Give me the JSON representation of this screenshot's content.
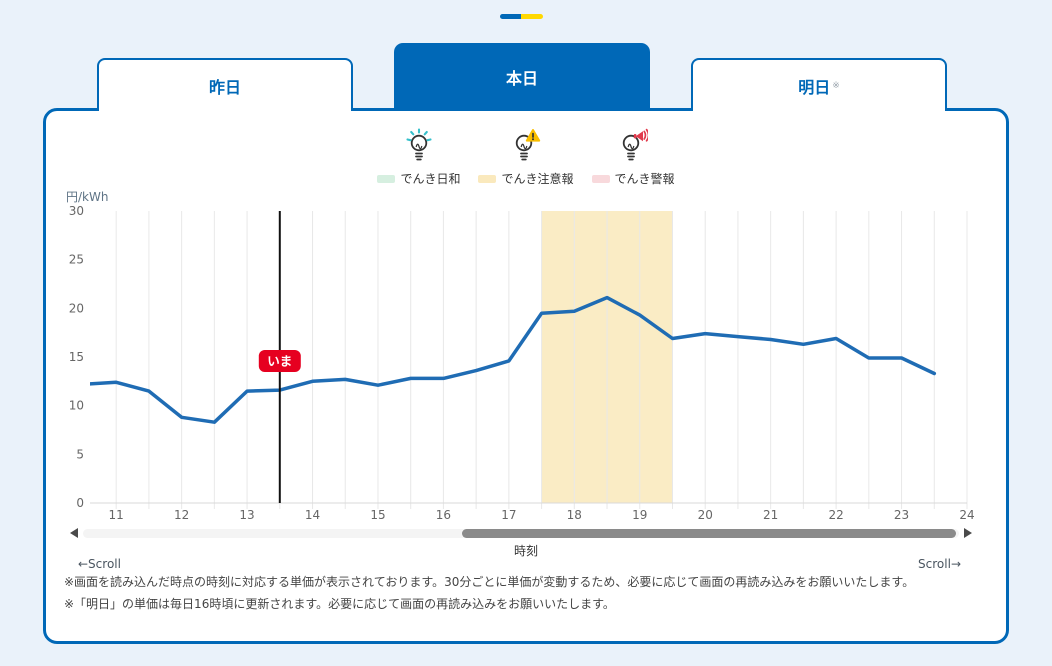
{
  "app": {
    "accent_blue": "#0068b7",
    "accent_yellow": "#ffd800"
  },
  "tabs": [
    {
      "id": "yesterday",
      "label": "昨日",
      "active": false
    },
    {
      "id": "today",
      "label": "本日",
      "active": true
    },
    {
      "id": "tomorrow",
      "label": "明日",
      "note_mark": "※",
      "active": false
    }
  ],
  "legend": [
    {
      "icon": "bulb-shine-icon",
      "label": "でんき日和",
      "swatch": "#d6efe0"
    },
    {
      "icon": "bulb-warning-icon",
      "label": "でんき注意報",
      "swatch": "#fae9bd"
    },
    {
      "icon": "bulb-alert-icon",
      "label": "でんき警報",
      "swatch": "#f8d9dc"
    }
  ],
  "chart_data": {
    "type": "line",
    "ylabel": "円/kWh",
    "xlabel": "時刻",
    "ylim": [
      0,
      30
    ],
    "xlim": [
      10.6,
      24
    ],
    "yticks": [
      0,
      5,
      10,
      15,
      20,
      25,
      30
    ],
    "xticks": [
      11,
      12,
      13,
      14,
      15,
      16,
      17,
      18,
      19,
      20,
      21,
      22,
      23,
      24
    ],
    "grid": {
      "orientation": "vertical",
      "from": 11,
      "to": 24,
      "step": 0.5
    },
    "now_marker": {
      "x": 13.5,
      "label": "いま",
      "badge_color": "#e60020",
      "line_color": "#111111"
    },
    "caution_band": {
      "from": 17.5,
      "to": 19.5,
      "color": "#faecc5",
      "meaning": "でんき注意報"
    },
    "series": [
      {
        "name": "単価",
        "color": "#1f6cb4",
        "x": [
          10.5,
          11,
          11.5,
          12,
          12.5,
          13,
          13.5,
          14,
          14.5,
          15,
          15.5,
          16,
          16.5,
          17,
          17.5,
          18,
          18.5,
          19,
          19.5,
          20,
          20.5,
          21,
          21.5,
          22,
          22.5,
          23,
          23.5
        ],
        "y": [
          12.2,
          12.4,
          11.5,
          8.8,
          8.3,
          11.5,
          11.6,
          12.5,
          12.7,
          12.1,
          12.8,
          12.8,
          13.6,
          14.6,
          19.5,
          19.7,
          21.1,
          19.3,
          16.9,
          17.4,
          17.1,
          16.8,
          16.3,
          16.9,
          14.9,
          14.9,
          13.3
        ]
      }
    ],
    "legend_position": "top"
  },
  "scrollbar": {
    "hint_left": "←Scroll",
    "hint_right": "Scroll→"
  },
  "notes": [
    "※画面を読み込んだ時点の時刻に対応する単価が表示されております。30分ごとに単価が変動するため、必要に応じて画面の再読み込みをお願いいたします。",
    "※「明日」の単価は毎日16時頃に更新されます。必要に応じて画面の再読み込みをお願いいたします。"
  ]
}
